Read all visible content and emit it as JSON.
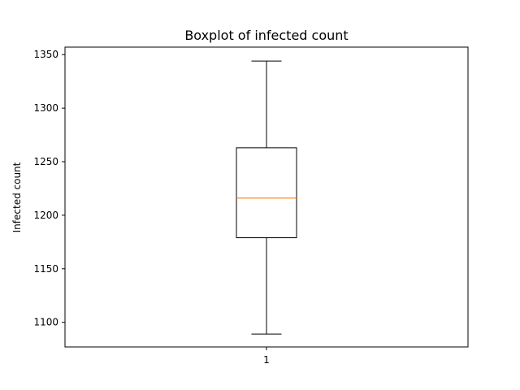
{
  "chart_data": {
    "type": "boxplot",
    "title": "Boxplot of infected count",
    "xlabel": "",
    "ylabel": "Infected count",
    "ylim": [
      1077,
      1357
    ],
    "yticks": [
      1100,
      1150,
      1200,
      1250,
      1300,
      1350
    ],
    "xticks": [
      "1"
    ],
    "grid": false,
    "boxes": [
      {
        "position": "1",
        "whisker_low": 1089,
        "q1": 1179,
        "median": 1216,
        "q3": 1263,
        "whisker_high": 1344
      }
    ],
    "colors": {
      "box": "#000000",
      "median": "#ff7f0e",
      "whisker": "#000000"
    }
  }
}
